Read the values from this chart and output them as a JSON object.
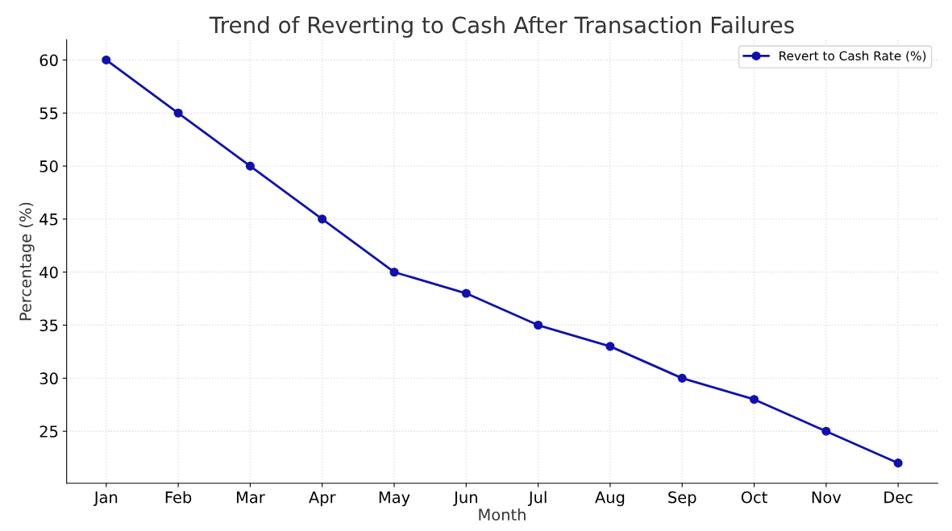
{
  "chart_data": {
    "type": "line",
    "title": "Trend of Reverting to Cash After Transaction Failures",
    "xlabel": "Month",
    "ylabel": "Percentage (%)",
    "categories": [
      "Jan",
      "Feb",
      "Mar",
      "Apr",
      "May",
      "Jun",
      "Jul",
      "Aug",
      "Sep",
      "Oct",
      "Nov",
      "Dec"
    ],
    "series": [
      {
        "name": "Revert to Cash Rate (%)",
        "color": "#1010b0",
        "values": [
          60,
          55,
          50,
          45,
          40,
          38,
          35,
          33,
          30,
          28,
          25,
          22
        ]
      }
    ],
    "ylim": [
      20.1,
      61.9
    ],
    "yticks": [
      25,
      30,
      35,
      40,
      45,
      50,
      55,
      60
    ],
    "grid": true,
    "legend": "top right",
    "marker": "circle",
    "line_style": "solid"
  }
}
